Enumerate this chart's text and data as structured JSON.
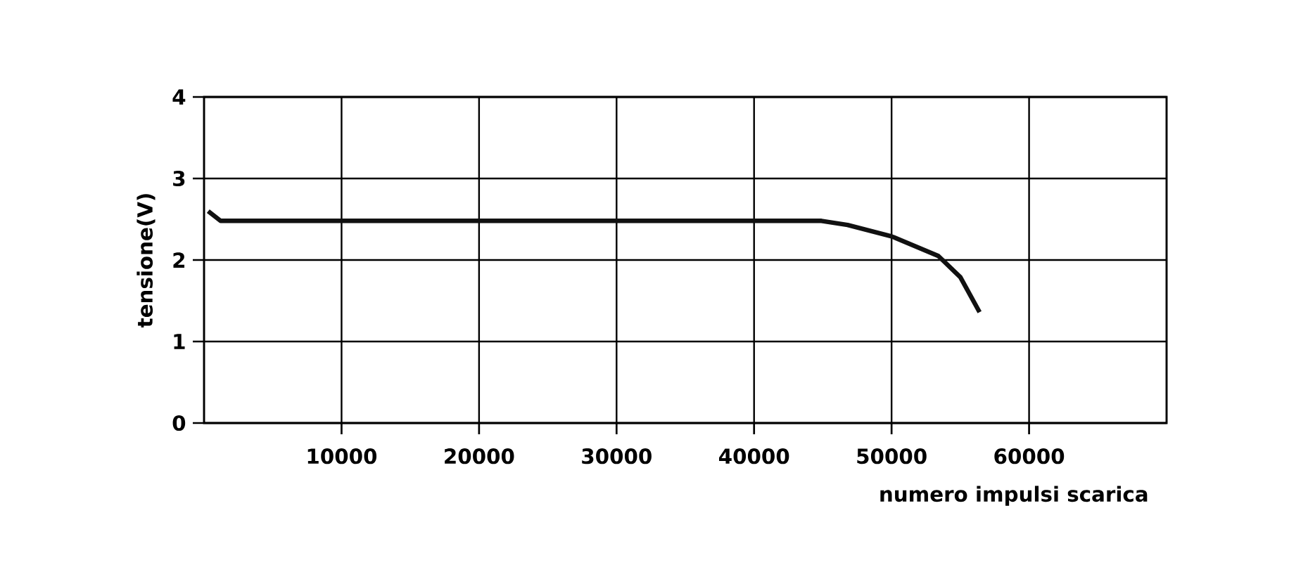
{
  "chart_data": {
    "type": "line",
    "xlabel": "numero impulsi scarica",
    "ylabel": "tensione(V)",
    "x": [
      300,
      1200,
      10000,
      20000,
      30000,
      44900,
      46800,
      50000,
      53400,
      55000,
      56400
    ],
    "series": [
      {
        "color": "#111111",
        "values": [
          2.6,
          2.48,
          2.48,
          2.48,
          2.48,
          2.48,
          2.43,
          2.29,
          2.05,
          1.79,
          1.36
        ]
      }
    ],
    "xlim": [
      0,
      70000
    ],
    "ylim": [
      0,
      4
    ],
    "xticks": [
      10000,
      20000,
      30000,
      40000,
      50000,
      60000
    ],
    "yticks": [
      0,
      1,
      2,
      3,
      4
    ],
    "grid": true,
    "marker": "none",
    "line_style": "solid"
  }
}
